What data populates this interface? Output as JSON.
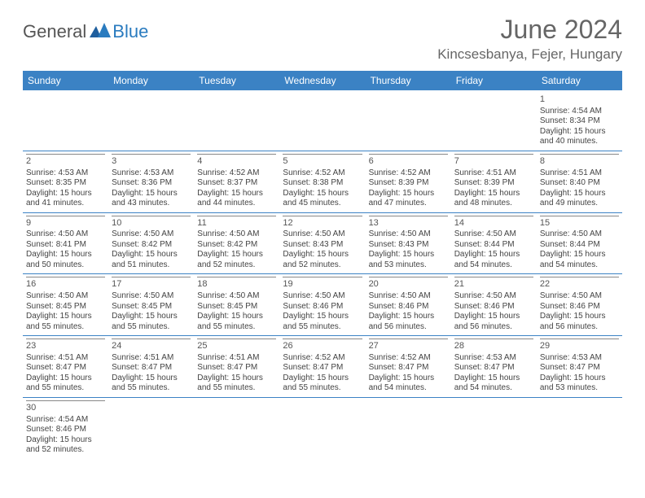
{
  "brand": {
    "part1": "General",
    "part2": "Blue"
  },
  "title": "June 2024",
  "location": "Kincsesbanya, Fejer, Hungary",
  "colors": {
    "header_bg": "#3b82c4",
    "header_text": "#ffffff",
    "rule": "#3b82c4",
    "text": "#444444",
    "brand_gray": "#555555",
    "brand_blue": "#2a7bbf"
  },
  "day_names": [
    "Sunday",
    "Monday",
    "Tuesday",
    "Wednesday",
    "Thursday",
    "Friday",
    "Saturday"
  ],
  "weeks": [
    [
      null,
      null,
      null,
      null,
      null,
      null,
      {
        "n": "1",
        "sunrise": "Sunrise: 4:54 AM",
        "sunset": "Sunset: 8:34 PM",
        "daylight": "Daylight: 15 hours and 40 minutes."
      }
    ],
    [
      {
        "n": "2",
        "sunrise": "Sunrise: 4:53 AM",
        "sunset": "Sunset: 8:35 PM",
        "daylight": "Daylight: 15 hours and 41 minutes."
      },
      {
        "n": "3",
        "sunrise": "Sunrise: 4:53 AM",
        "sunset": "Sunset: 8:36 PM",
        "daylight": "Daylight: 15 hours and 43 minutes."
      },
      {
        "n": "4",
        "sunrise": "Sunrise: 4:52 AM",
        "sunset": "Sunset: 8:37 PM",
        "daylight": "Daylight: 15 hours and 44 minutes."
      },
      {
        "n": "5",
        "sunrise": "Sunrise: 4:52 AM",
        "sunset": "Sunset: 8:38 PM",
        "daylight": "Daylight: 15 hours and 45 minutes."
      },
      {
        "n": "6",
        "sunrise": "Sunrise: 4:52 AM",
        "sunset": "Sunset: 8:39 PM",
        "daylight": "Daylight: 15 hours and 47 minutes."
      },
      {
        "n": "7",
        "sunrise": "Sunrise: 4:51 AM",
        "sunset": "Sunset: 8:39 PM",
        "daylight": "Daylight: 15 hours and 48 minutes."
      },
      {
        "n": "8",
        "sunrise": "Sunrise: 4:51 AM",
        "sunset": "Sunset: 8:40 PM",
        "daylight": "Daylight: 15 hours and 49 minutes."
      }
    ],
    [
      {
        "n": "9",
        "sunrise": "Sunrise: 4:50 AM",
        "sunset": "Sunset: 8:41 PM",
        "daylight": "Daylight: 15 hours and 50 minutes."
      },
      {
        "n": "10",
        "sunrise": "Sunrise: 4:50 AM",
        "sunset": "Sunset: 8:42 PM",
        "daylight": "Daylight: 15 hours and 51 minutes."
      },
      {
        "n": "11",
        "sunrise": "Sunrise: 4:50 AM",
        "sunset": "Sunset: 8:42 PM",
        "daylight": "Daylight: 15 hours and 52 minutes."
      },
      {
        "n": "12",
        "sunrise": "Sunrise: 4:50 AM",
        "sunset": "Sunset: 8:43 PM",
        "daylight": "Daylight: 15 hours and 52 minutes."
      },
      {
        "n": "13",
        "sunrise": "Sunrise: 4:50 AM",
        "sunset": "Sunset: 8:43 PM",
        "daylight": "Daylight: 15 hours and 53 minutes."
      },
      {
        "n": "14",
        "sunrise": "Sunrise: 4:50 AM",
        "sunset": "Sunset: 8:44 PM",
        "daylight": "Daylight: 15 hours and 54 minutes."
      },
      {
        "n": "15",
        "sunrise": "Sunrise: 4:50 AM",
        "sunset": "Sunset: 8:44 PM",
        "daylight": "Daylight: 15 hours and 54 minutes."
      }
    ],
    [
      {
        "n": "16",
        "sunrise": "Sunrise: 4:50 AM",
        "sunset": "Sunset: 8:45 PM",
        "daylight": "Daylight: 15 hours and 55 minutes."
      },
      {
        "n": "17",
        "sunrise": "Sunrise: 4:50 AM",
        "sunset": "Sunset: 8:45 PM",
        "daylight": "Daylight: 15 hours and 55 minutes."
      },
      {
        "n": "18",
        "sunrise": "Sunrise: 4:50 AM",
        "sunset": "Sunset: 8:45 PM",
        "daylight": "Daylight: 15 hours and 55 minutes."
      },
      {
        "n": "19",
        "sunrise": "Sunrise: 4:50 AM",
        "sunset": "Sunset: 8:46 PM",
        "daylight": "Daylight: 15 hours and 55 minutes."
      },
      {
        "n": "20",
        "sunrise": "Sunrise: 4:50 AM",
        "sunset": "Sunset: 8:46 PM",
        "daylight": "Daylight: 15 hours and 56 minutes."
      },
      {
        "n": "21",
        "sunrise": "Sunrise: 4:50 AM",
        "sunset": "Sunset: 8:46 PM",
        "daylight": "Daylight: 15 hours and 56 minutes."
      },
      {
        "n": "22",
        "sunrise": "Sunrise: 4:50 AM",
        "sunset": "Sunset: 8:46 PM",
        "daylight": "Daylight: 15 hours and 56 minutes."
      }
    ],
    [
      {
        "n": "23",
        "sunrise": "Sunrise: 4:51 AM",
        "sunset": "Sunset: 8:47 PM",
        "daylight": "Daylight: 15 hours and 55 minutes."
      },
      {
        "n": "24",
        "sunrise": "Sunrise: 4:51 AM",
        "sunset": "Sunset: 8:47 PM",
        "daylight": "Daylight: 15 hours and 55 minutes."
      },
      {
        "n": "25",
        "sunrise": "Sunrise: 4:51 AM",
        "sunset": "Sunset: 8:47 PM",
        "daylight": "Daylight: 15 hours and 55 minutes."
      },
      {
        "n": "26",
        "sunrise": "Sunrise: 4:52 AM",
        "sunset": "Sunset: 8:47 PM",
        "daylight": "Daylight: 15 hours and 55 minutes."
      },
      {
        "n": "27",
        "sunrise": "Sunrise: 4:52 AM",
        "sunset": "Sunset: 8:47 PM",
        "daylight": "Daylight: 15 hours and 54 minutes."
      },
      {
        "n": "28",
        "sunrise": "Sunrise: 4:53 AM",
        "sunset": "Sunset: 8:47 PM",
        "daylight": "Daylight: 15 hours and 54 minutes."
      },
      {
        "n": "29",
        "sunrise": "Sunrise: 4:53 AM",
        "sunset": "Sunset: 8:47 PM",
        "daylight": "Daylight: 15 hours and 53 minutes."
      }
    ],
    [
      {
        "n": "30",
        "sunrise": "Sunrise: 4:54 AM",
        "sunset": "Sunset: 8:46 PM",
        "daylight": "Daylight: 15 hours and 52 minutes."
      },
      null,
      null,
      null,
      null,
      null,
      null
    ]
  ]
}
